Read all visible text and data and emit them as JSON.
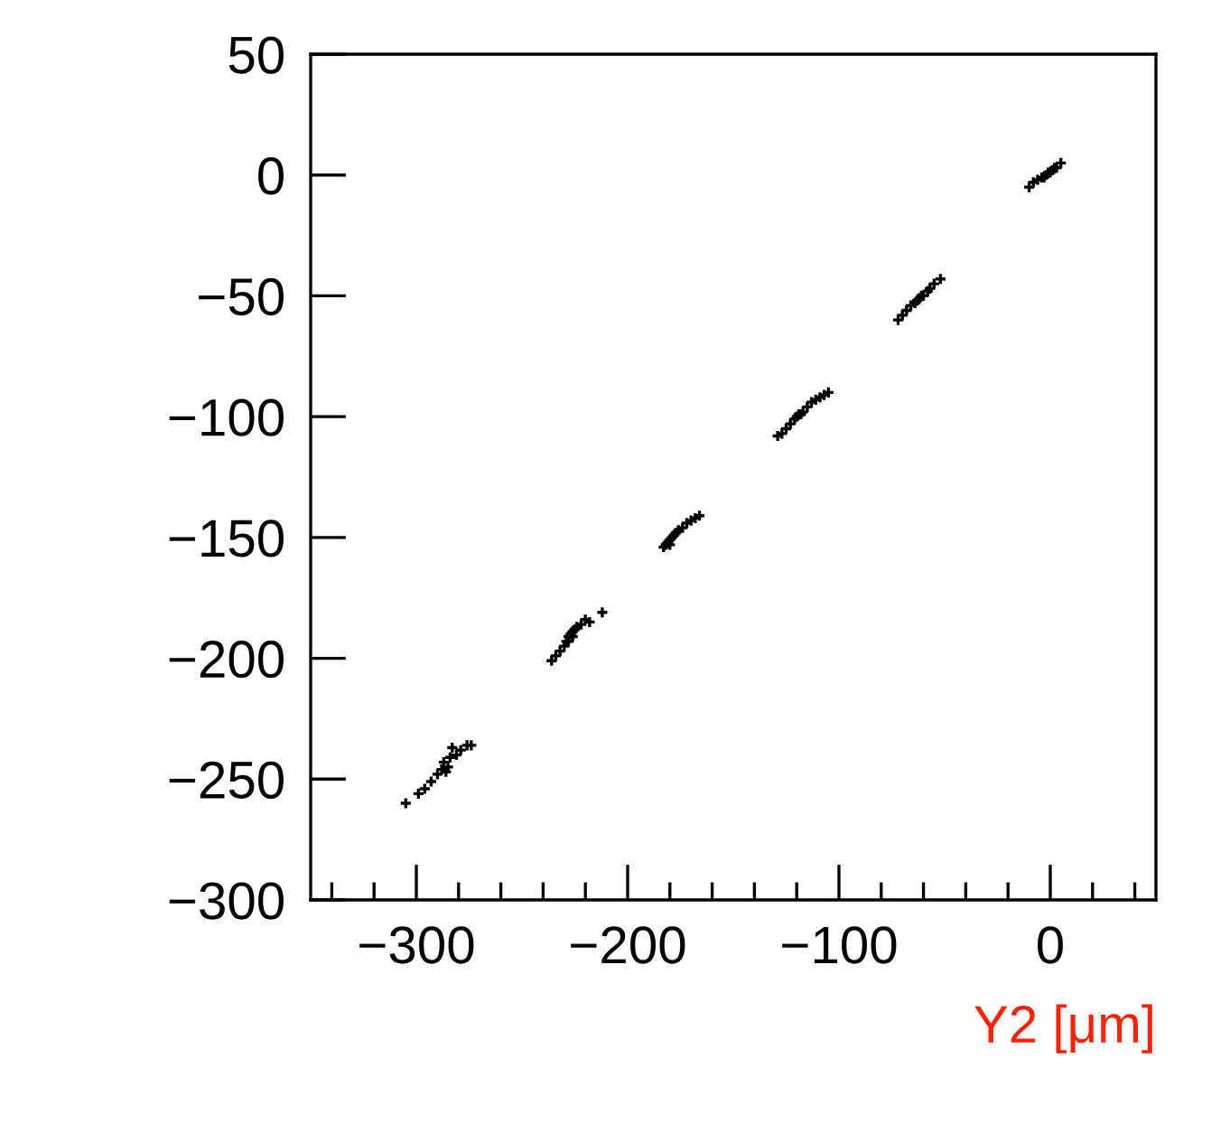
{
  "chart_data": {
    "type": "scatter",
    "xlabel": "Y2 [μm]",
    "marker": "cross",
    "grid": false,
    "legend": false,
    "xlim": [
      -350,
      50
    ],
    "ylim": [
      -300,
      50
    ],
    "xticks": [
      {
        "value": -300,
        "label": "−300"
      },
      {
        "value": -200,
        "label": "−200"
      },
      {
        "value": -100,
        "label": "−100"
      },
      0
    ],
    "yticks": [
      {
        "value": -300,
        "label": "−300"
      },
      {
        "value": -250,
        "label": "−250"
      },
      {
        "value": -200,
        "label": "−200"
      },
      {
        "value": -150,
        "label": "−150"
      },
      {
        "value": -100,
        "label": "−100"
      },
      {
        "value": -50,
        "label": "−50"
      },
      0,
      50
    ],
    "series": [
      {
        "color": "#000000",
        "x": [
          -10,
          -8,
          -6,
          -4,
          -2,
          0,
          1,
          3,
          5,
          -3,
          -1,
          2,
          -72,
          -70,
          -68,
          -66,
          -64,
          -62,
          -60,
          -58,
          -57,
          -55,
          -52,
          -63,
          -61,
          -129,
          -127,
          -125,
          -123,
          -121,
          -119,
          -117,
          -115,
          -113,
          -111,
          -109,
          -107,
          -105,
          -120,
          -118,
          -183,
          -182,
          -181,
          -180,
          -179,
          -178,
          -176,
          -174,
          -172,
          -170,
          -168,
          -166,
          -180,
          -177,
          -236,
          -234,
          -232,
          -230,
          -229,
          -228,
          -227,
          -226,
          -225,
          -224,
          -222,
          -220,
          -218,
          -212,
          -228,
          -226,
          -305,
          -299,
          -296,
          -293,
          -290,
          -288,
          -287,
          -285,
          -284,
          -283,
          -281,
          -279,
          -276,
          -274,
          -286
        ],
        "values": [
          -5,
          -3,
          -2,
          -1,
          0,
          1,
          2,
          3,
          5,
          -1,
          1,
          3,
          -60,
          -58,
          -56,
          -54,
          -53,
          -51,
          -50,
          -48,
          -47,
          -45,
          -43,
          -52,
          -50,
          -108,
          -107,
          -105,
          -103,
          -101,
          -99,
          -98,
          -96,
          -94,
          -93,
          -92,
          -91,
          -90,
          -100,
          -99,
          -154,
          -153,
          -152,
          -151,
          -150,
          -149,
          -147,
          -146,
          -144,
          -143,
          -142,
          -141,
          -153,
          -148,
          -201,
          -199,
          -197,
          -195,
          -193,
          -191,
          -190,
          -189,
          -188,
          -187,
          -186,
          -184,
          -185,
          -181,
          -193,
          -191,
          -260,
          -256,
          -254,
          -251,
          -248,
          -246,
          -243,
          -245,
          -241,
          -237,
          -240,
          -238,
          -236,
          -236,
          -247
        ]
      }
    ]
  }
}
